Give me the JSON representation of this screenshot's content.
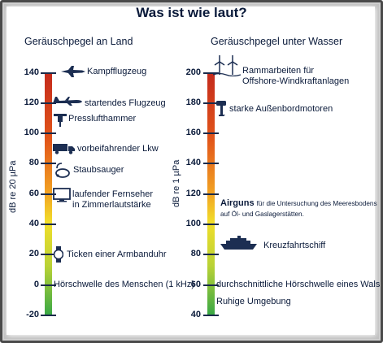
{
  "title": "Was ist wie laut?",
  "left": {
    "heading": "Geräuschpegel an Land",
    "axis_label": "dB re 20 µPa",
    "ticks": [
      "140",
      "120",
      "100",
      "80",
      "60",
      "40",
      "20",
      "0",
      "-20"
    ],
    "items": {
      "jet": "Kampfflugzeug",
      "plane": "startendes Flugzeug",
      "jackhammer": "Presslufthammer",
      "truck": "vorbeifahrender Lkw",
      "vacuum": "Staubsauger",
      "tv_line1": "laufender Fernseher",
      "tv_line2": "in Zimmerlautstärke",
      "watch": "Ticken einer Armbanduhr",
      "threshold": "Hörschwelle des Menschen (1 kHz)"
    }
  },
  "right": {
    "heading": "Geräuschpegel unter Wasser",
    "axis_label": "dB re 1 µPa",
    "ticks": [
      "200",
      "180",
      "160",
      "140",
      "120",
      "100",
      "80",
      "60",
      "40"
    ],
    "items": {
      "pile_line1": "Rammarbeiten für",
      "pile_line2": "Offshore-Windkraftanlagen",
      "motor": "starke Außenbordmotoren",
      "airgun_bold": "Airguns",
      "airgun_rest": "für die Untersuchung des Meeresbodens",
      "airgun_line2": "auf Öl- und Gaslagerstätten.",
      "cruise": "Kreuzfahrtschiff",
      "threshold": "durchschnittliche Hörschwelle eines Wals",
      "quiet": "Ruhige Umgebung"
    }
  },
  "colors": {
    "text": "#0a1a3a",
    "scale_top": "#c42a1c",
    "scale_bottom": "#3aa845"
  }
}
